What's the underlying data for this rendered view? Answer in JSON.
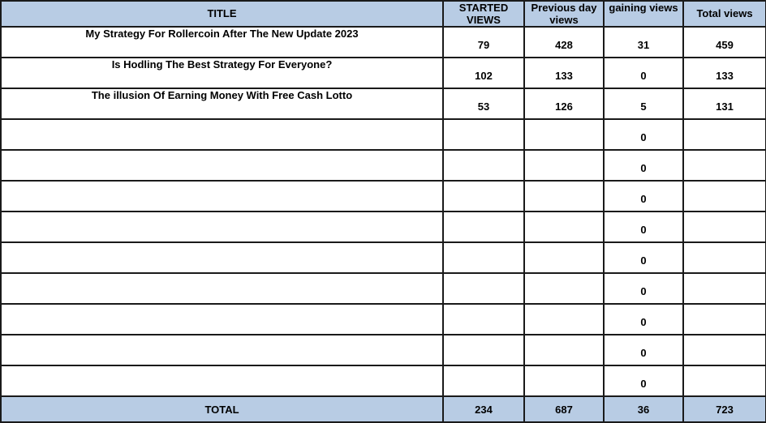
{
  "header": {
    "title": "TITLE",
    "started_views": "STARTED VIEWS",
    "previous_day_views": "Previous day views",
    "gaining_views": "gaining views",
    "total_views": "Total views"
  },
  "rows": [
    {
      "title": "My Strategy For Rollercoin After The New Update 2023",
      "started": "79",
      "previous": "428",
      "gaining": "31",
      "total": "459"
    },
    {
      "title": "Is Hodling The Best Strategy For Everyone?",
      "started": "102",
      "previous": "133",
      "gaining": "0",
      "total": "133"
    },
    {
      "title": "The illusion Of Earning Money With Free Cash Lotto",
      "started": "53",
      "previous": "126",
      "gaining": "5",
      "total": "131"
    },
    {
      "title": "",
      "started": "",
      "previous": "",
      "gaining": "0",
      "total": ""
    },
    {
      "title": "",
      "started": "",
      "previous": "",
      "gaining": "0",
      "total": ""
    },
    {
      "title": "",
      "started": "",
      "previous": "",
      "gaining": "0",
      "total": ""
    },
    {
      "title": "",
      "started": "",
      "previous": "",
      "gaining": "0",
      "total": ""
    },
    {
      "title": "",
      "started": "",
      "previous": "",
      "gaining": "0",
      "total": ""
    },
    {
      "title": "",
      "started": "",
      "previous": "",
      "gaining": "0",
      "total": ""
    },
    {
      "title": "",
      "started": "",
      "previous": "",
      "gaining": "0",
      "total": ""
    },
    {
      "title": "",
      "started": "",
      "previous": "",
      "gaining": "0",
      "total": ""
    },
    {
      "title": "",
      "started": "",
      "previous": "",
      "gaining": "0",
      "total": ""
    }
  ],
  "totals": {
    "label": "TOTAL",
    "started": "234",
    "previous": "687",
    "gaining": "36",
    "total": "723"
  },
  "colors": {
    "header_fill": "#b8cce4",
    "grid": "#1a1a1a"
  }
}
